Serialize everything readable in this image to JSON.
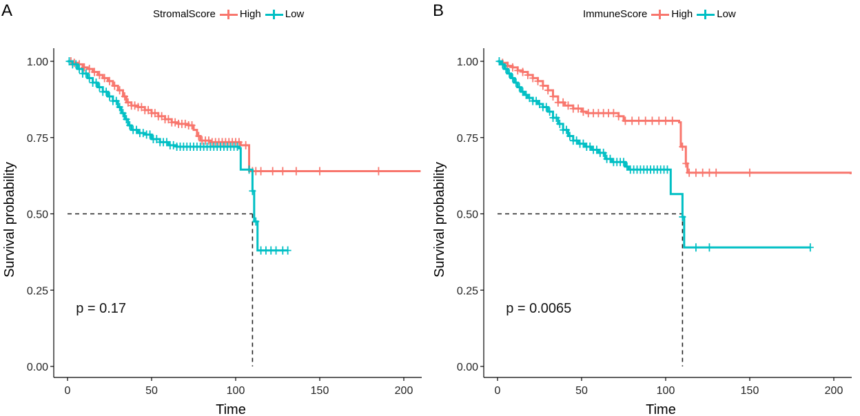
{
  "chart_data": [
    {
      "type": "line",
      "panel_label": "A",
      "legend_title": "StromalScore",
      "xlabel": "Time",
      "ylabel": "Survival probability",
      "xlim": [
        0,
        210
      ],
      "ylim": [
        0,
        1.05
      ],
      "x_ticks": [
        0,
        50,
        100,
        150,
        200
      ],
      "x_tick_labels": [
        "0",
        "50",
        "100",
        "150",
        "200"
      ],
      "y_ticks": [
        0,
        0.25,
        0.5,
        0.75,
        1.0
      ],
      "y_tick_labels": [
        "0.00",
        "0.25",
        "0.50",
        "0.75",
        "1.00"
      ],
      "pvalue_text": "p = 0.17",
      "pvalue_pos": [
        5,
        0.19
      ],
      "median_line": {
        "y": 0.5,
        "x": 110
      },
      "series": [
        {
          "name": "High",
          "color": "#F8766D",
          "steps": [
            [
              0,
              1.0
            ],
            [
              3,
              0.995
            ],
            [
              6,
              0.99
            ],
            [
              9,
              0.98
            ],
            [
              12,
              0.975
            ],
            [
              15,
              0.965
            ],
            [
              18,
              0.955
            ],
            [
              21,
              0.945
            ],
            [
              24,
              0.935
            ],
            [
              27,
              0.92
            ],
            [
              30,
              0.905
            ],
            [
              33,
              0.885
            ],
            [
              35,
              0.865
            ],
            [
              38,
              0.855
            ],
            [
              42,
              0.85
            ],
            [
              46,
              0.84
            ],
            [
              50,
              0.83
            ],
            [
              54,
              0.82
            ],
            [
              58,
              0.81
            ],
            [
              62,
              0.8
            ],
            [
              66,
              0.795
            ],
            [
              72,
              0.79
            ],
            [
              75,
              0.775
            ],
            [
              77,
              0.755
            ],
            [
              79,
              0.74
            ],
            [
              85,
              0.735
            ],
            [
              103,
              0.725
            ],
            [
              108,
              0.64
            ],
            [
              210,
              0.64
            ]
          ],
          "censor_times": [
            2,
            4,
            7,
            10,
            13,
            16,
            19,
            22,
            25,
            28,
            31,
            34,
            36,
            38,
            40,
            42,
            44,
            46,
            48,
            50,
            52,
            54,
            56,
            58,
            60,
            62,
            64,
            66,
            68,
            70,
            72,
            74,
            78,
            80,
            82,
            84,
            86,
            88,
            90,
            92,
            94,
            96,
            98,
            100,
            102,
            106,
            110,
            112,
            115,
            122,
            128,
            136,
            150,
            185
          ]
        },
        {
          "name": "Low",
          "color": "#00BFC4",
          "steps": [
            [
              0,
              1.0
            ],
            [
              3,
              0.99
            ],
            [
              6,
              0.975
            ],
            [
              9,
              0.96
            ],
            [
              12,
              0.945
            ],
            [
              15,
              0.93
            ],
            [
              18,
              0.915
            ],
            [
              21,
              0.9
            ],
            [
              24,
              0.885
            ],
            [
              27,
              0.87
            ],
            [
              30,
              0.85
            ],
            [
              32,
              0.83
            ],
            [
              34,
              0.81
            ],
            [
              36,
              0.79
            ],
            [
              38,
              0.775
            ],
            [
              42,
              0.765
            ],
            [
              46,
              0.76
            ],
            [
              50,
              0.745
            ],
            [
              55,
              0.735
            ],
            [
              60,
              0.725
            ],
            [
              65,
              0.72
            ],
            [
              102,
              0.715
            ],
            [
              103,
              0.645
            ],
            [
              109,
              0.645
            ],
            [
              110,
              0.575
            ],
            [
              111,
              0.475
            ],
            [
              113,
              0.38
            ],
            [
              131,
              0.38
            ]
          ],
          "censor_times": [
            1,
            3,
            5,
            7,
            9,
            11,
            13,
            15,
            17,
            19,
            21,
            23,
            25,
            27,
            29,
            31,
            33,
            35,
            37,
            39,
            41,
            43,
            45,
            47,
            49,
            51,
            53,
            55,
            57,
            59,
            61,
            63,
            65,
            67,
            69,
            71,
            73,
            75,
            77,
            79,
            81,
            83,
            85,
            87,
            89,
            91,
            93,
            95,
            97,
            99,
            101,
            108,
            110,
            112,
            115,
            118,
            121,
            124,
            128,
            131
          ]
        }
      ]
    },
    {
      "type": "line",
      "panel_label": "B",
      "legend_title": "ImmuneScore",
      "xlabel": "Time",
      "ylabel": "Survival probability",
      "xlim": [
        0,
        210
      ],
      "ylim": [
        0,
        1.05
      ],
      "x_ticks": [
        0,
        50,
        100,
        150,
        200
      ],
      "x_tick_labels": [
        "0",
        "50",
        "100",
        "150",
        "200"
      ],
      "y_ticks": [
        0,
        0.25,
        0.5,
        0.75,
        1.0
      ],
      "y_tick_labels": [
        "0.00",
        "0.25",
        "0.50",
        "0.75",
        "1.00"
      ],
      "pvalue_text": "p = 0.0065",
      "pvalue_pos": [
        5,
        0.19
      ],
      "median_line": {
        "y": 0.5,
        "x": 110
      },
      "series": [
        {
          "name": "High",
          "color": "#F8766D",
          "steps": [
            [
              0,
              1.0
            ],
            [
              3,
              0.995
            ],
            [
              6,
              0.985
            ],
            [
              9,
              0.98
            ],
            [
              12,
              0.97
            ],
            [
              15,
              0.965
            ],
            [
              18,
              0.955
            ],
            [
              21,
              0.945
            ],
            [
              24,
              0.935
            ],
            [
              27,
              0.92
            ],
            [
              30,
              0.905
            ],
            [
              33,
              0.885
            ],
            [
              36,
              0.865
            ],
            [
              40,
              0.855
            ],
            [
              45,
              0.845
            ],
            [
              50,
              0.835
            ],
            [
              53,
              0.83
            ],
            [
              72,
              0.82
            ],
            [
              75,
              0.805
            ],
            [
              108,
              0.8
            ],
            [
              109,
              0.72
            ],
            [
              111,
              0.72
            ],
            [
              112,
              0.665
            ],
            [
              113,
              0.635
            ],
            [
              210,
              0.63
            ]
          ],
          "censor_times": [
            3,
            6,
            9,
            12,
            15,
            18,
            21,
            24,
            27,
            30,
            33,
            36,
            39,
            42,
            45,
            48,
            51,
            54,
            57,
            60,
            63,
            66,
            69,
            72,
            76,
            80,
            84,
            88,
            92,
            96,
            100,
            104,
            110,
            112,
            114,
            118,
            122,
            126,
            130,
            150
          ]
        },
        {
          "name": "Low",
          "color": "#00BFC4",
          "steps": [
            [
              0,
              1.0
            ],
            [
              2,
              0.99
            ],
            [
              4,
              0.975
            ],
            [
              6,
              0.96
            ],
            [
              8,
              0.945
            ],
            [
              10,
              0.93
            ],
            [
              12,
              0.915
            ],
            [
              14,
              0.9
            ],
            [
              16,
              0.89
            ],
            [
              18,
              0.88
            ],
            [
              21,
              0.87
            ],
            [
              24,
              0.86
            ],
            [
              27,
              0.85
            ],
            [
              30,
              0.835
            ],
            [
              33,
              0.815
            ],
            [
              36,
              0.795
            ],
            [
              39,
              0.775
            ],
            [
              42,
              0.755
            ],
            [
              45,
              0.74
            ],
            [
              48,
              0.73
            ],
            [
              52,
              0.72
            ],
            [
              56,
              0.71
            ],
            [
              60,
              0.7
            ],
            [
              64,
              0.68
            ],
            [
              68,
              0.67
            ],
            [
              76,
              0.655
            ],
            [
              78,
              0.645
            ],
            [
              102,
              0.645
            ],
            [
              103,
              0.565
            ],
            [
              109,
              0.565
            ],
            [
              110,
              0.49
            ],
            [
              111,
              0.39
            ],
            [
              186,
              0.39
            ]
          ],
          "censor_times": [
            1,
            3,
            5,
            7,
            9,
            11,
            13,
            15,
            17,
            19,
            21,
            23,
            25,
            27,
            29,
            31,
            33,
            35,
            37,
            39,
            41,
            43,
            45,
            47,
            49,
            51,
            53,
            55,
            57,
            59,
            61,
            63,
            65,
            67,
            69,
            71,
            73,
            75,
            77,
            79,
            81,
            83,
            85,
            87,
            89,
            91,
            93,
            95,
            97,
            99,
            101,
            110,
            118,
            126,
            186
          ]
        }
      ]
    }
  ]
}
